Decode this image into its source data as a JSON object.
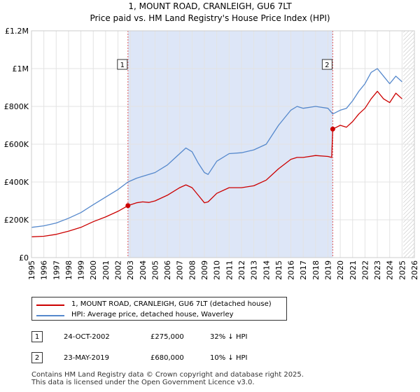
{
  "chart_data": {
    "type": "line",
    "title": "1, MOUNT ROAD, CRANLEIGH, GU6 7LT",
    "subtitle": "Price paid vs. HM Land Registry's House Price Index (HPI)",
    "xlim": [
      1995,
      2026
    ],
    "ylim": [
      0,
      1200000
    ],
    "x_ticks": [
      "1995",
      "1996",
      "1997",
      "1998",
      "1999",
      "2000",
      "2001",
      "2002",
      "2003",
      "2004",
      "2005",
      "2006",
      "2007",
      "2008",
      "2009",
      "2010",
      "2011",
      "2012",
      "2013",
      "2014",
      "2015",
      "2016",
      "2017",
      "2018",
      "2019",
      "2020",
      "2021",
      "2022",
      "2023",
      "2024",
      "2025",
      "2026"
    ],
    "y_ticks": [
      {
        "value": 0,
        "label": "£0"
      },
      {
        "value": 200000,
        "label": "£200K"
      },
      {
        "value": 400000,
        "label": "£400K"
      },
      {
        "value": 600000,
        "label": "£600K"
      },
      {
        "value": 800000,
        "label": "£800K"
      },
      {
        "value": 1000000,
        "label": "£1M"
      },
      {
        "value": 1200000,
        "label": "£1.2M"
      }
    ],
    "shaded_period": [
      2002.81,
      2019.39
    ],
    "future_hatch_from": 2025.1,
    "series": [
      {
        "name": "1, MOUNT ROAD, CRANLEIGH, GU6 7LT (detached house)",
        "color": "#cc0000",
        "x": [
          1995.0,
          1996.0,
          1997.0,
          1998.0,
          1999.0,
          2000.0,
          2001.0,
          2002.0,
          2002.81,
          2003.5,
          2004.0,
          2004.5,
          2005.0,
          2006.0,
          2007.0,
          2007.5,
          2008.0,
          2008.5,
          2009.0,
          2009.3,
          2010.0,
          2011.0,
          2012.0,
          2013.0,
          2014.0,
          2015.0,
          2016.0,
          2016.5,
          2017.0,
          2018.0,
          2019.0,
          2019.3,
          2019.39,
          2020.0,
          2020.5,
          2021.0,
          2021.5,
          2022.0,
          2022.5,
          2023.0,
          2023.5,
          2024.0,
          2024.5,
          2025.0
        ],
        "values": [
          110000,
          113000,
          123000,
          140000,
          160000,
          190000,
          215000,
          245000,
          275000,
          290000,
          295000,
          292000,
          300000,
          330000,
          370000,
          385000,
          370000,
          330000,
          290000,
          295000,
          340000,
          370000,
          370000,
          380000,
          410000,
          470000,
          520000,
          530000,
          530000,
          540000,
          535000,
          530000,
          680000,
          700000,
          690000,
          720000,
          760000,
          790000,
          840000,
          880000,
          840000,
          820000,
          870000,
          840000
        ]
      },
      {
        "name": "HPI: Average price, detached house, Waverley",
        "color": "#5588cc",
        "x": [
          1995.0,
          1996.0,
          1997.0,
          1998.0,
          1999.0,
          2000.0,
          2001.0,
          2002.0,
          2002.81,
          2003.5,
          2004.0,
          2005.0,
          2006.0,
          2007.0,
          2007.5,
          2008.0,
          2008.5,
          2009.0,
          2009.3,
          2010.0,
          2011.0,
          2012.0,
          2013.0,
          2014.0,
          2015.0,
          2016.0,
          2016.5,
          2017.0,
          2018.0,
          2019.0,
          2019.39,
          2020.0,
          2020.5,
          2021.0,
          2021.5,
          2022.0,
          2022.5,
          2023.0,
          2023.5,
          2024.0,
          2024.5,
          2025.0
        ],
        "values": [
          160000,
          168000,
          183000,
          208000,
          238000,
          280000,
          320000,
          360000,
          400000,
          420000,
          430000,
          450000,
          490000,
          550000,
          580000,
          560000,
          500000,
          450000,
          440000,
          510000,
          550000,
          555000,
          570000,
          600000,
          700000,
          780000,
          800000,
          790000,
          800000,
          790000,
          760000,
          780000,
          790000,
          830000,
          880000,
          920000,
          980000,
          1000000,
          960000,
          920000,
          960000,
          930000
        ]
      }
    ],
    "annotations": [
      {
        "id": "1",
        "x": 2002.81,
        "value": 275000
      },
      {
        "id": "2",
        "x": 2019.39,
        "value": 680000
      }
    ]
  },
  "legend": {
    "property_label": "1, MOUNT ROAD, CRANLEIGH, GU6 7LT (detached house)",
    "hpi_label": "HPI: Average price, detached house, Waverley"
  },
  "transactions": [
    {
      "id": "1",
      "date": "24-OCT-2002",
      "price": "£275,000",
      "hpi": "32% ↓ HPI"
    },
    {
      "id": "2",
      "date": "23-MAY-2019",
      "price": "£680,000",
      "hpi": "10% ↓ HPI"
    }
  ],
  "footer": {
    "line1": "Contains HM Land Registry data © Crown copyright and database right 2025.",
    "line2": "This data is licensed under the Open Government Licence v3.0."
  }
}
